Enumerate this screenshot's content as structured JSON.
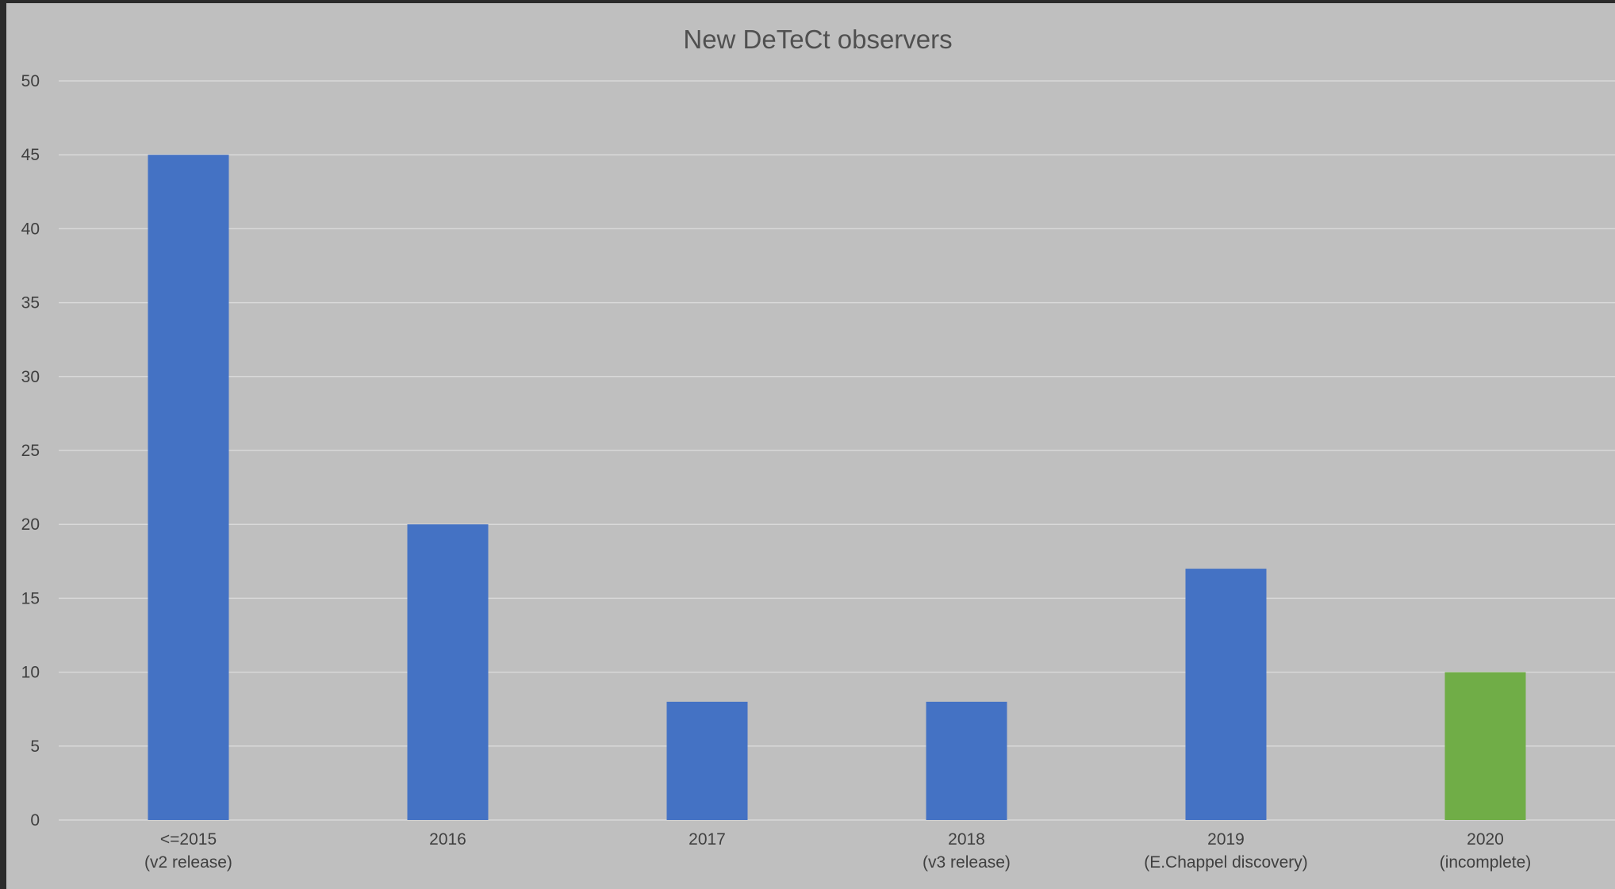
{
  "chart_data": {
    "type": "bar",
    "title": "New DeTeCt  observers",
    "xlabel": "",
    "ylabel": "",
    "categories": [
      [
        "<=2015",
        "(v2 release)"
      ],
      [
        "2016"
      ],
      [
        "2017"
      ],
      [
        "2018",
        "(v3 release)"
      ],
      [
        "2019",
        "(E.Chappel discovery)"
      ],
      [
        "2020",
        "(incomplete)"
      ]
    ],
    "values": [
      45,
      20,
      8,
      8,
      17,
      10
    ],
    "bar_colors": [
      "#4472c4",
      "#4472c4",
      "#4472c4",
      "#4472c4",
      "#4472c4",
      "#70ad47"
    ],
    "ylim": [
      0,
      50
    ],
    "yticks": [
      0,
      5,
      10,
      15,
      20,
      25,
      30,
      35,
      40,
      45,
      50
    ],
    "grid": true,
    "legend": "none",
    "colors": {
      "background": "#bfbfbf",
      "gridline": "#d9d9d9",
      "text": "#404040"
    }
  }
}
